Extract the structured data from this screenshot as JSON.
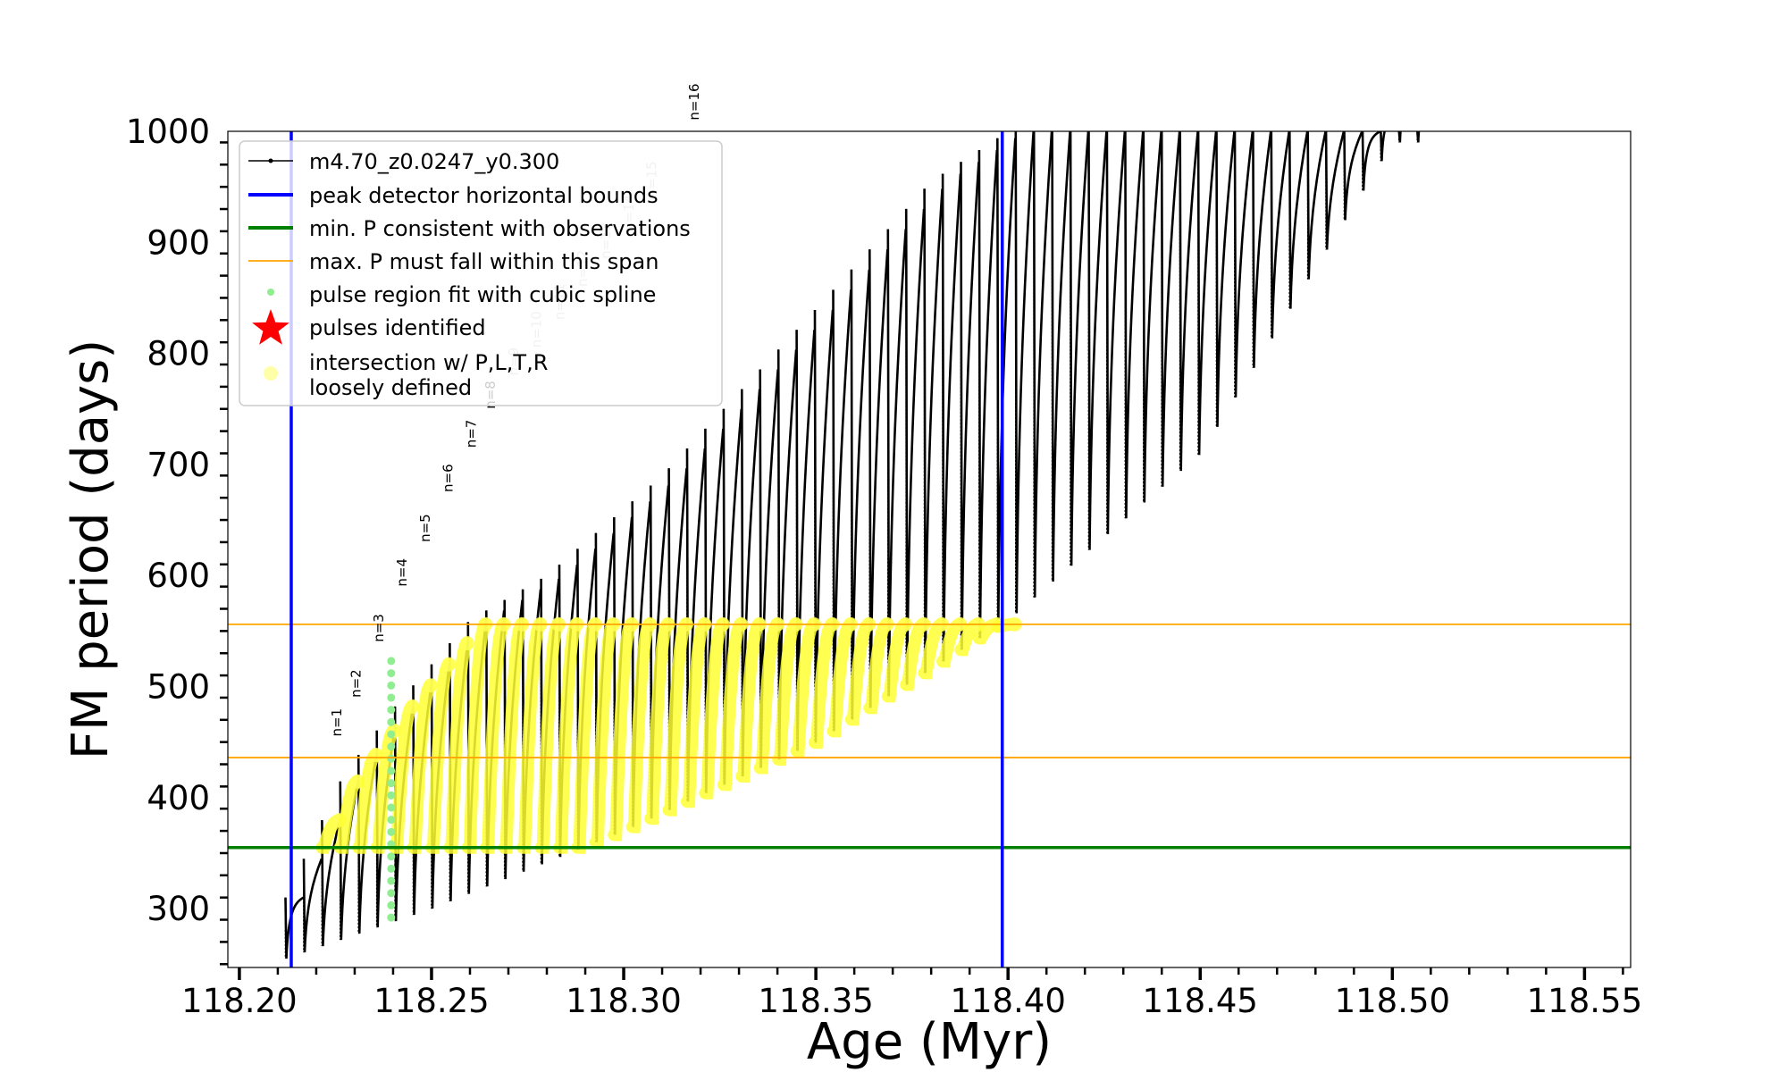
{
  "chart_data": {
    "type": "line",
    "xlabel": "Age (Myr)",
    "ylabel": "FM period (days)",
    "xlim": [
      118.197,
      118.562
    ],
    "ylim": [
      247,
      1000
    ],
    "x_ticks": [
      118.2,
      118.25,
      118.3,
      118.35,
      118.4,
      118.45,
      118.5,
      118.55
    ],
    "x_tick_labels": [
      "118.20",
      "118.25",
      "118.30",
      "118.35",
      "118.40",
      "118.45",
      "118.50",
      "118.55"
    ],
    "y_ticks": [
      300,
      400,
      500,
      600,
      700,
      800,
      900,
      1000
    ],
    "y_tick_labels": [
      "300",
      "400",
      "500",
      "600",
      "700",
      "800",
      "900",
      "1000"
    ],
    "legend": {
      "placement": "upper-left",
      "entries": [
        {
          "label": "m4.70_z0.0247_y0.300",
          "marker": "line-dot",
          "color": "#000000"
        },
        {
          "label": "peak detector horizontal bounds",
          "marker": "line",
          "color": "#0000ff"
        },
        {
          "label": "min. P consistent with observations",
          "marker": "line",
          "color": "#008000"
        },
        {
          "label": "max. P must fall within this span",
          "marker": "line",
          "color": "#ffa500"
        },
        {
          "label": "pulse region fit with cubic spline",
          "marker": "dot",
          "color": "#90ee90"
        },
        {
          "label": "pulses identified",
          "marker": "star",
          "color": "#ff0000"
        },
        {
          "label": "intersection w/ P,L,T,R\nloosely defined",
          "marker": "circle",
          "color": "#ffff99"
        }
      ]
    },
    "reference_lines": {
      "peak_detector_bounds_x": [
        118.2135,
        118.3985
      ],
      "min_p_observations_y": 355,
      "max_p_span_y": [
        436,
        556
      ]
    },
    "series": [
      {
        "name": "m4.70_z0.0247_y0.300",
        "color": "#000000",
        "pulse_start_age": 118.212,
        "pulse_spacing": 0.00475,
        "pulse_count": 63,
        "peak_period_envelope": {
          "x": [
            118.212,
            118.227,
            118.24,
            118.26,
            118.28,
            118.31,
            118.35,
            118.38,
            118.4,
            118.44,
            118.47,
            118.49
          ],
          "y": [
            310,
            420,
            480,
            560,
            600,
            690,
            840,
            955,
            1000,
            1000,
            1000,
            1000
          ]
        },
        "trough_period_envelope": {
          "x": [
            118.212,
            118.25,
            118.3,
            118.35,
            118.4,
            118.45,
            118.5
          ],
          "y": [
            255,
            300,
            370,
            450,
            560,
            710,
            990
          ]
        }
      }
    ],
    "pulse_labels": [
      {
        "text": "n=1",
        "x": 118.2265,
        "y": 455
      },
      {
        "text": "n=2",
        "x": 118.2315,
        "y": 490
      },
      {
        "text": "n=3",
        "x": 118.2375,
        "y": 540
      },
      {
        "text": "n=4",
        "x": 118.2435,
        "y": 590
      },
      {
        "text": "n=5",
        "x": 118.2495,
        "y": 630
      },
      {
        "text": "n=6",
        "x": 118.2555,
        "y": 675
      },
      {
        "text": "n=7",
        "x": 118.2615,
        "y": 715
      },
      {
        "text": "n=8",
        "x": 118.2665,
        "y": 750
      },
      {
        "text": "n=9",
        "x": 118.2725,
        "y": 780
      },
      {
        "text": "n=10",
        "x": 118.2785,
        "y": 805
      },
      {
        "text": "n=11",
        "x": 118.2845,
        "y": 830
      },
      {
        "text": "n=12",
        "x": 118.2905,
        "y": 860
      },
      {
        "text": "n=13",
        "x": 118.2965,
        "y": 885
      },
      {
        "text": "n=14",
        "x": 118.3025,
        "y": 910
      },
      {
        "text": "n=15",
        "x": 118.3085,
        "y": 940
      },
      {
        "text": "n=16",
        "x": 118.3195,
        "y": 1010
      }
    ]
  }
}
